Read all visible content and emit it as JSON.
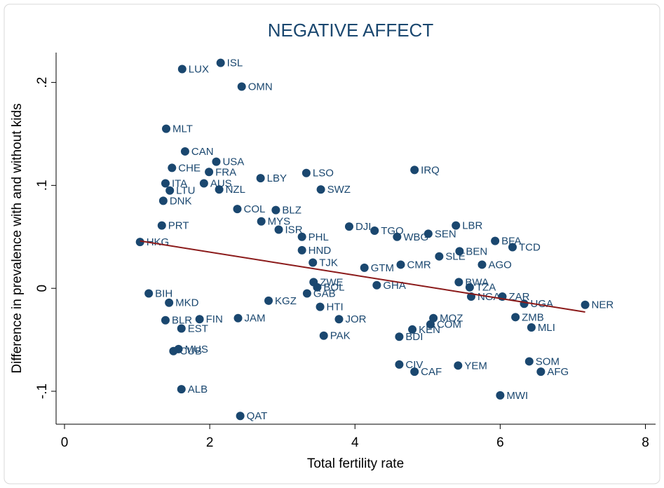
{
  "chart_data": {
    "type": "scatter",
    "title": "NEGATIVE AFFECT",
    "x_label": "Total fertility rate",
    "y_label": "Difference in prevalence with and without kids",
    "xlim": [
      -0.116,
      8.14
    ],
    "ylim": [
      -0.132,
      0.229
    ],
    "xticks": [
      0,
      2,
      4,
      6,
      8
    ],
    "yticks": [
      {
        "value": -0.1,
        "label": "-.1"
      },
      0,
      {
        "value": 0.1,
        "label": ".1"
      },
      {
        "value": 0.2,
        "label": ".2"
      }
    ],
    "series": [
      {
        "color": "#1a476f",
        "labels": [
          "LUX",
          "ISL",
          "OMN",
          "MLT",
          "CAN",
          "USA",
          "CHE",
          "FRA",
          "LBY",
          "LSO",
          "IRQ",
          "ITA",
          "AUS",
          "NZL",
          "SWZ",
          "LTU",
          "BLZ",
          "COL",
          "DJI",
          "TGO",
          "LBR",
          "BFA",
          "TCD",
          "MYS",
          "ISR",
          "PHL",
          "WBG",
          "SEN",
          "HND",
          "BEN",
          "SLE",
          "TJK",
          "AGO",
          "CMR",
          "GTM",
          "ZWE",
          "BWA",
          "GHA",
          "TZA",
          "BOL",
          "GAB",
          "NGA",
          "ZAR",
          "UGA",
          "NER",
          "HTI",
          "BIH",
          "MKD",
          "ZMB",
          "MLI",
          "MOZ",
          "COM",
          "KEN",
          "JOR",
          "FIN",
          "BLR",
          "JAM",
          "EST",
          "PAK",
          "BDI",
          "MUS",
          "CUB",
          "SOM",
          "AFG",
          "CIV",
          "CAF",
          "YEM",
          "ALB",
          "MWI",
          "QAT",
          "KGZ",
          "HKG",
          "PRT",
          "DNK"
        ],
        "x": [
          1.62,
          2.15,
          2.44,
          1.4,
          1.66,
          2.09,
          1.48,
          1.99,
          2.7,
          3.33,
          4.82,
          1.39,
          1.92,
          2.13,
          3.53,
          1.45,
          2.91,
          2.38,
          3.92,
          4.27,
          5.39,
          5.93,
          6.17,
          2.71,
          2.95,
          3.27,
          4.58,
          5.01,
          3.27,
          5.44,
          5.16,
          3.42,
          5.75,
          4.63,
          4.13,
          3.43,
          5.43,
          4.3,
          5.58,
          3.48,
          3.34,
          5.6,
          6.03,
          6.33,
          7.17,
          3.52,
          1.16,
          1.44,
          6.21,
          6.43,
          5.08,
          5.04,
          4.79,
          3.78,
          1.86,
          1.39,
          2.39,
          1.61,
          3.57,
          4.61,
          1.57,
          1.5,
          6.4,
          6.56,
          4.61,
          4.82,
          5.42,
          1.61,
          6.0,
          2.42,
          2.81,
          1.04,
          1.34,
          1.36
        ],
        "values": [
          0.213,
          0.219,
          0.196,
          0.155,
          0.133,
          0.123,
          0.117,
          0.113,
          0.107,
          0.112,
          0.115,
          0.102,
          0.102,
          0.096,
          0.096,
          0.095,
          0.076,
          0.077,
          0.06,
          0.056,
          0.061,
          0.046,
          0.04,
          0.065,
          0.057,
          0.05,
          0.05,
          0.053,
          0.037,
          0.036,
          0.031,
          0.025,
          0.023,
          0.023,
          0.02,
          0.006,
          0.006,
          0.003,
          0.001,
          0.001,
          -0.005,
          -0.008,
          -0.008,
          -0.015,
          -0.016,
          -0.018,
          -0.005,
          -0.014,
          -0.028,
          -0.038,
          -0.029,
          -0.035,
          -0.04,
          -0.03,
          -0.03,
          -0.031,
          -0.029,
          -0.039,
          -0.046,
          -0.047,
          -0.059,
          -0.061,
          -0.071,
          -0.081,
          -0.074,
          -0.081,
          -0.075,
          -0.098,
          -0.104,
          -0.124,
          -0.012,
          0.045,
          0.061,
          0.085
        ]
      }
    ],
    "fit": {
      "color": "#8b1a1a",
      "x": [
        1.04,
        7.17
      ],
      "values": [
        0.046,
        -0.023
      ]
    }
  }
}
